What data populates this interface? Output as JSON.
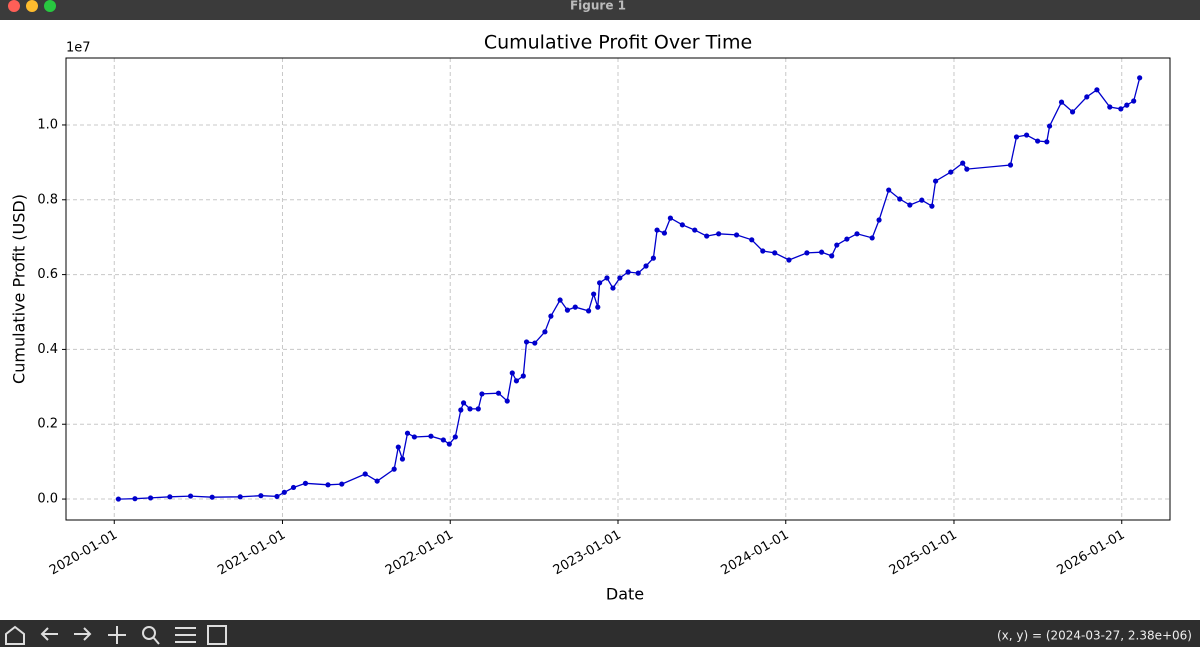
{
  "window": {
    "title": "Figure 1"
  },
  "status_bar": {
    "coordinates": "(x, y) = (2024-03-27, 2.38e+06)"
  },
  "chart_data": {
    "type": "line",
    "title": "Cumulative Profit Over Time",
    "x_label": "Date",
    "y_label": "Cumulative Profit (USD)",
    "y_offset_label": "1e7",
    "x": [
      "2020-01-10",
      "2020-02-15",
      "2020-03-20",
      "2020-05-01",
      "2020-06-15",
      "2020-08-01",
      "2020-10-01",
      "2020-11-15",
      "2020-12-20",
      "2021-01-05",
      "2021-01-25",
      "2021-02-20",
      "2021-04-10",
      "2021-05-10",
      "2021-06-30",
      "2021-07-26",
      "2021-09-01",
      "2021-09-10",
      "2021-09-19",
      "2021-09-30",
      "2021-10-15",
      "2021-11-20",
      "2021-12-17",
      "2021-12-30",
      "2022-01-12",
      "2022-01-24",
      "2022-01-30",
      "2022-02-13",
      "2022-03-03",
      "2022-03-11",
      "2022-04-16",
      "2022-05-05",
      "2022-05-16",
      "2022-05-25",
      "2022-06-09",
      "2022-06-16",
      "2022-07-04",
      "2022-07-26",
      "2022-08-08",
      "2022-08-28",
      "2022-09-13",
      "2022-09-30",
      "2022-10-29",
      "2022-11-09",
      "2022-11-18",
      "2022-11-22",
      "2022-12-08",
      "2022-12-21",
      "2023-01-05",
      "2023-01-23",
      "2023-02-14",
      "2023-03-03",
      "2023-03-19",
      "2023-03-27",
      "2023-04-12",
      "2023-04-25",
      "2023-05-21",
      "2023-06-17",
      "2023-07-13",
      "2023-08-08",
      "2023-09-16",
      "2023-10-19",
      "2023-11-12",
      "2023-12-08",
      "2024-01-08",
      "2024-02-16",
      "2024-03-19",
      "2024-04-10",
      "2024-04-21",
      "2024-05-13",
      "2024-06-04",
      "2024-07-07",
      "2024-07-22",
      "2024-08-12",
      "2024-09-05",
      "2024-09-27",
      "2024-10-23",
      "2024-11-14",
      "2024-11-22",
      "2024-12-25",
      "2025-01-20",
      "2025-01-29",
      "2025-05-04",
      "2025-05-17",
      "2025-06-08",
      "2025-07-02",
      "2025-07-22",
      "2025-07-28",
      "2025-08-23",
      "2025-09-16",
      "2025-10-17",
      "2025-11-08",
      "2025-12-06",
      "2025-12-30",
      "2026-01-12",
      "2026-01-27",
      "2026-02-09"
    ],
    "values": [
      0,
      10000,
      30000,
      60000,
      80000,
      50000,
      60000,
      90000,
      70000,
      180000,
      310000,
      420000,
      380000,
      400000,
      670000,
      480000,
      800000,
      1390000,
      1070000,
      1760000,
      1660000,
      1680000,
      1580000,
      1470000,
      1660000,
      2380000,
      2570000,
      2410000,
      2410000,
      2810000,
      2830000,
      2620000,
      3370000,
      3160000,
      3290000,
      4200000,
      4170000,
      4470000,
      4890000,
      5320000,
      5050000,
      5130000,
      5030000,
      5480000,
      5130000,
      5780000,
      5910000,
      5640000,
      5910000,
      6070000,
      6040000,
      6230000,
      6440000,
      7190000,
      7110000,
      7510000,
      7330000,
      7190000,
      7030000,
      7090000,
      7060000,
      6930000,
      6630000,
      6580000,
      6390000,
      6580000,
      6600000,
      6500000,
      6790000,
      6950000,
      7090000,
      6980000,
      7460000,
      8260000,
      8020000,
      7860000,
      7990000,
      7830000,
      8500000,
      8740000,
      8980000,
      8820000,
      8930000,
      9680000,
      9730000,
      9570000,
      9550000,
      9970000,
      10610000,
      10350000,
      10750000,
      10940000,
      10480000,
      10430000,
      10530000,
      10640000,
      11260000
    ],
    "color": "#0000cc",
    "markers": true,
    "xlim": [
      "2019-09-18",
      "2026-04-16"
    ],
    "xticks": [
      "2020-01-01",
      "2021-01-01",
      "2022-01-01",
      "2023-01-01",
      "2024-01-01",
      "2025-01-01",
      "2026-01-01"
    ],
    "ylim": [
      -560000,
      11790000
    ],
    "yticks": [
      {
        "value": 0,
        "label": "0.0"
      },
      {
        "value": 2000000,
        "label": "0.2"
      },
      {
        "value": 4000000,
        "label": "0.4"
      },
      {
        "value": 6000000,
        "label": "0.6"
      },
      {
        "value": 8000000,
        "label": "0.8"
      },
      {
        "value": 10000000,
        "label": "1.0"
      }
    ],
    "grid": true
  }
}
